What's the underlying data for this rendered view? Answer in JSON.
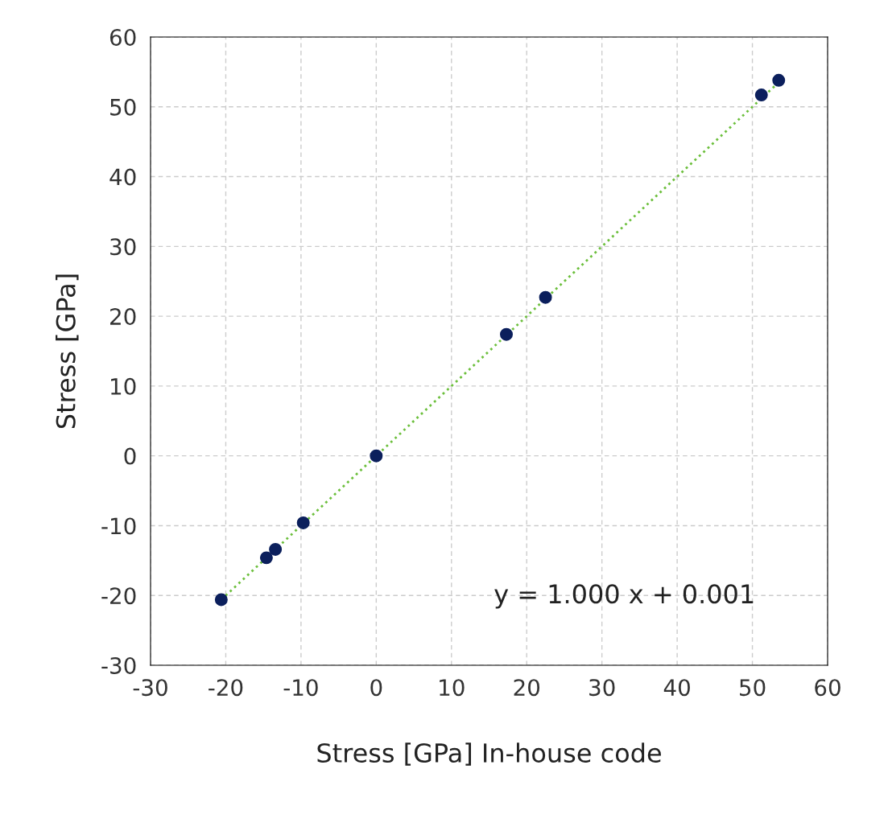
{
  "chart_data": {
    "type": "scatter",
    "xlabel": "Stress [GPa] In-house code",
    "ylabel": "Stress [GPa]",
    "series": [
      {
        "color": "#0b1f5c",
        "marker": "circle",
        "x": [
          -20.6,
          -14.6,
          -13.4,
          -9.7,
          0,
          17.3,
          22.5,
          51.2,
          53.5
        ],
        "values": [
          -20.6,
          -14.6,
          -13.4,
          -9.6,
          0,
          17.4,
          22.7,
          51.7,
          53.8
        ]
      },
      {
        "type": "line",
        "color": "#6cbf3c",
        "line_style": "dotted",
        "marker": "none",
        "x": [
          -20.6,
          53.5
        ],
        "values": [
          -20.6,
          53.5
        ]
      }
    ],
    "annotations": [
      "y = 1.000 x + 0.001"
    ],
    "xlim": [
      -30,
      60
    ],
    "ylim": [
      -30,
      60
    ],
    "xticks": [
      -30,
      -20,
      -10,
      0,
      10,
      20,
      30,
      40,
      50,
      60
    ],
    "yticks": [
      -30,
      -20,
      -10,
      0,
      10,
      20,
      30,
      40,
      50,
      60
    ],
    "grid": true
  }
}
